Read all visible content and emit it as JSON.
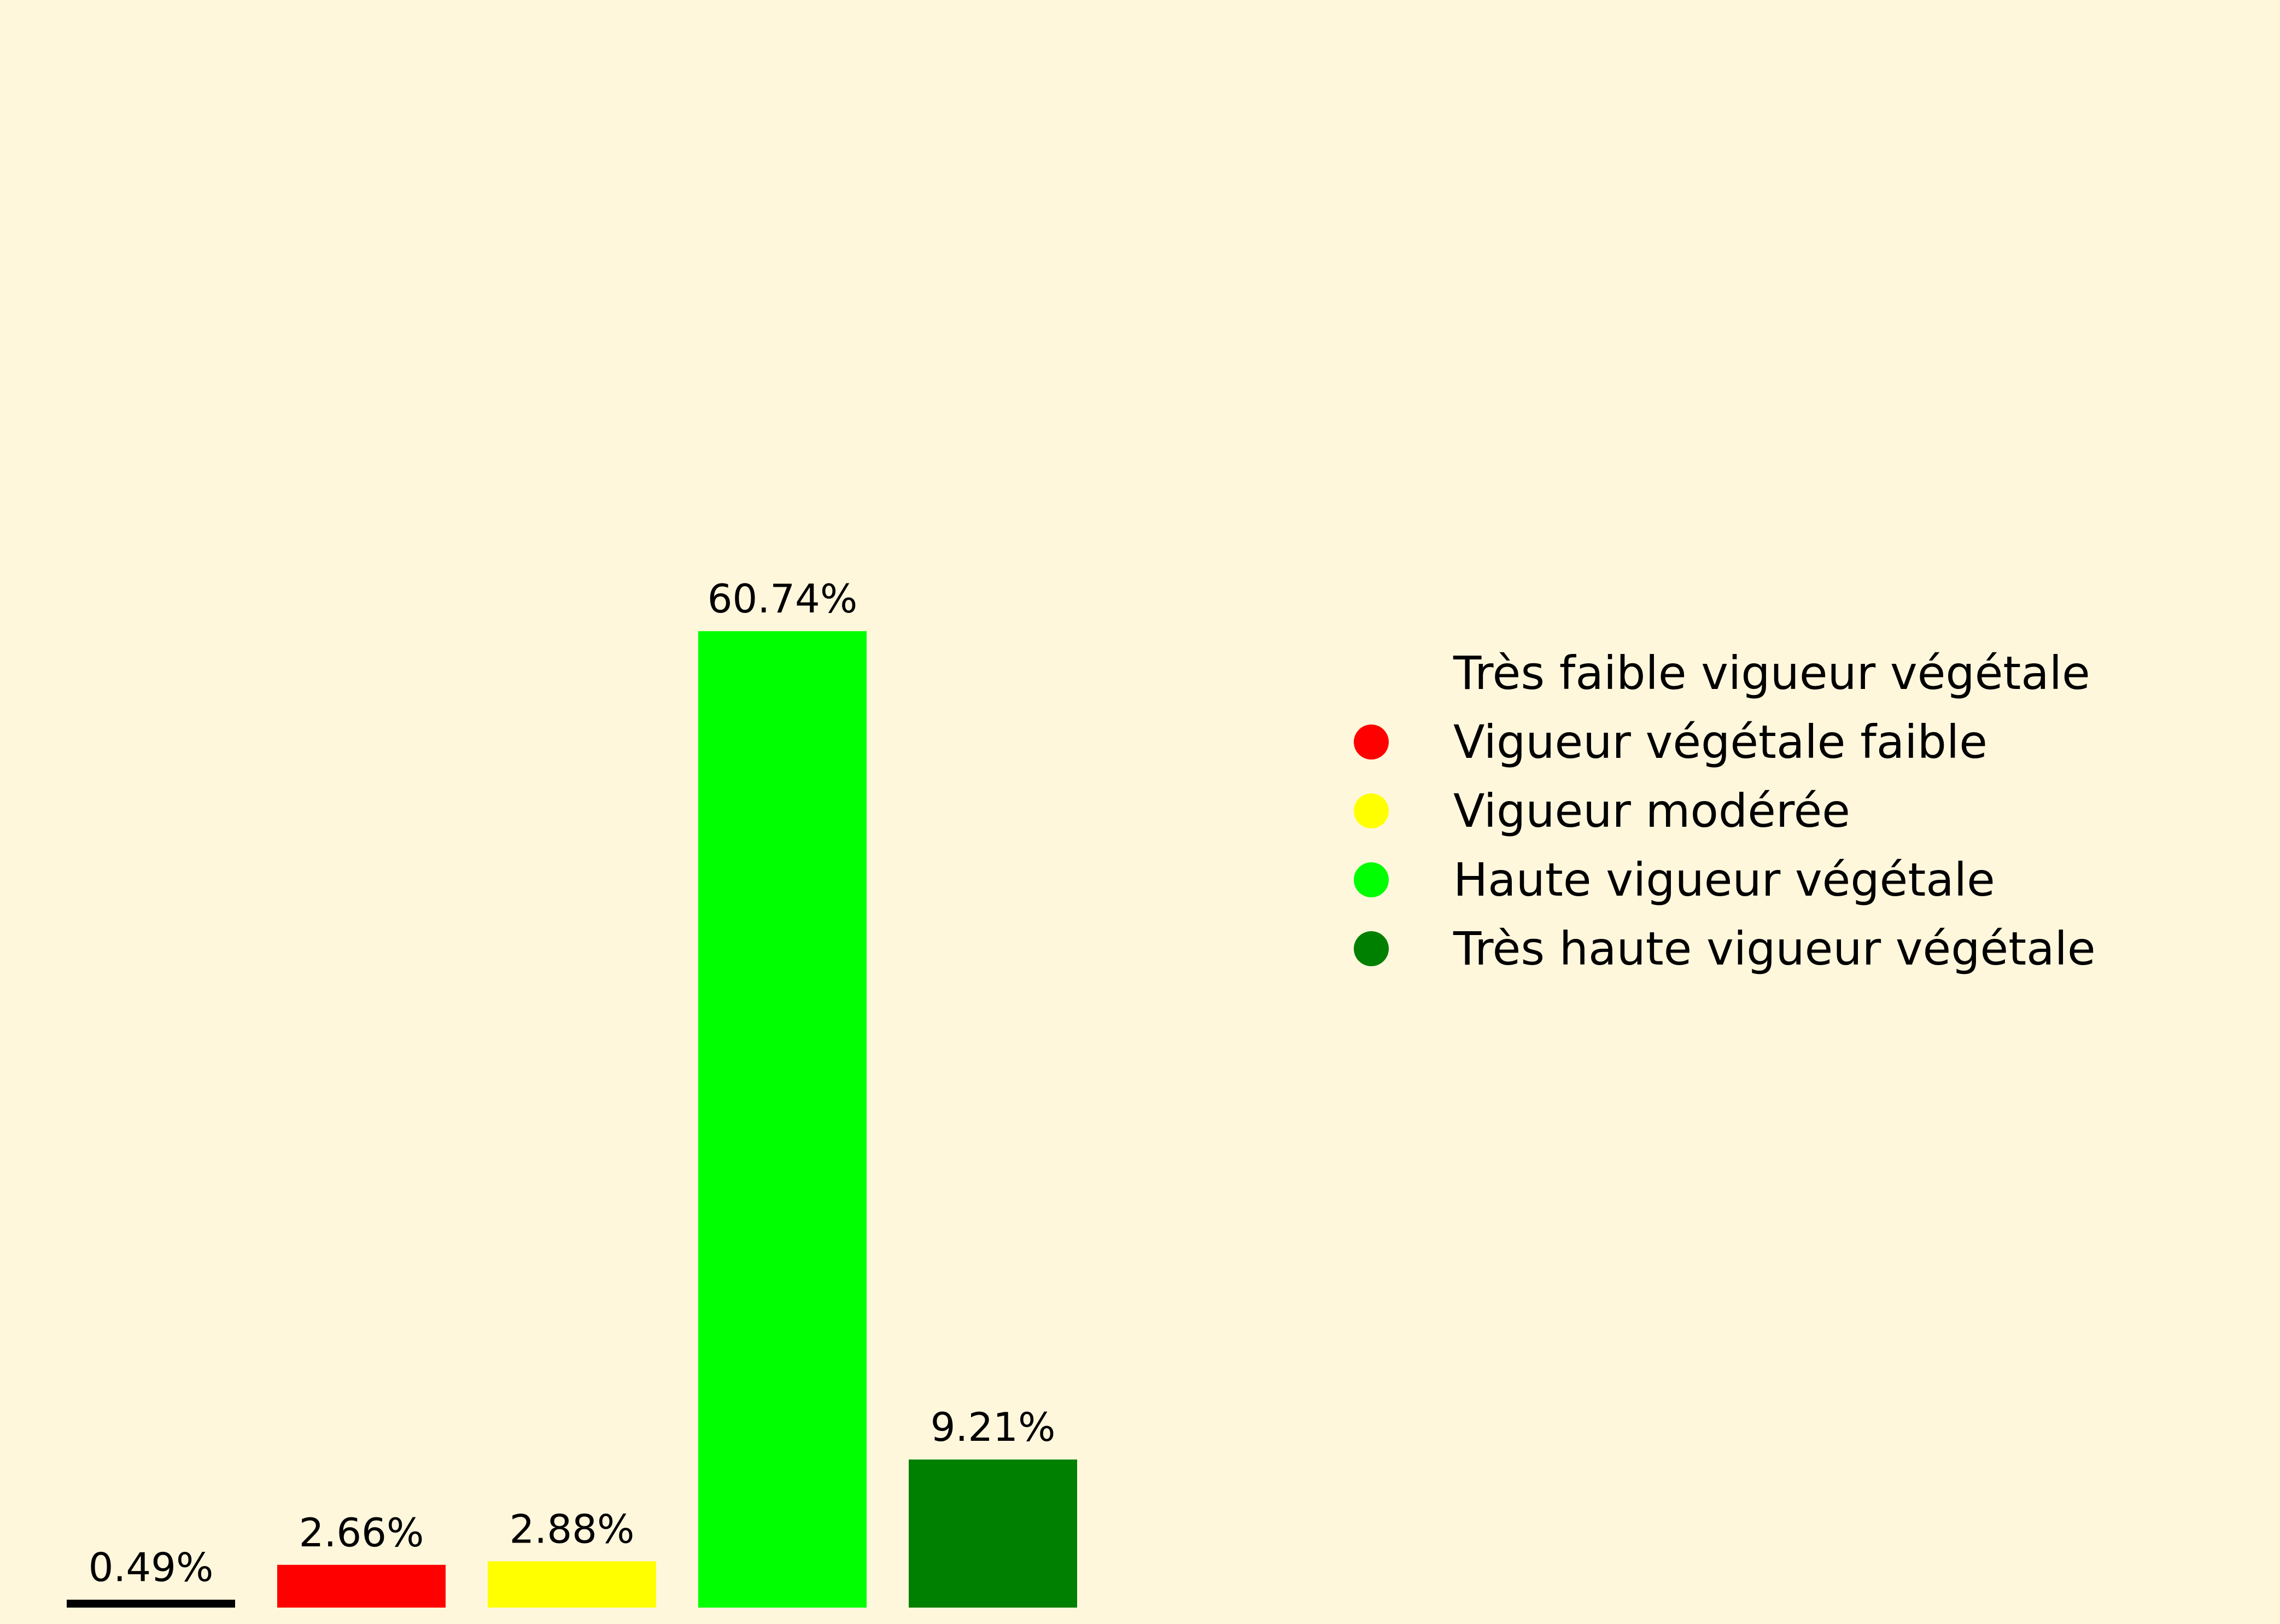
{
  "chart_data": {
    "type": "bar",
    "categories": [
      "Très faible vigueur végétale",
      "Vigueur végétale faible",
      "Vigueur modérée",
      "Haute vigueur végétale",
      "Très haute vigueur végétale"
    ],
    "values": [
      0.49,
      2.66,
      2.88,
      60.74,
      9.21
    ],
    "value_labels": [
      "0.49%",
      "2.66%",
      "2.88%",
      "60.74%",
      "9.21%"
    ],
    "colors": [
      "#000000",
      "#ff0000",
      "#ffff00",
      "#00ff00",
      "#008000"
    ],
    "legend_marker_colors": [
      "#fff7dc",
      "#ff0000",
      "#ffff00",
      "#00ff00",
      "#008000"
    ],
    "ylim": [
      0,
      100
    ],
    "grid": false,
    "legend_position": "right",
    "background": "#fff7dc",
    "title": "",
    "xlabel": "",
    "ylabel": ""
  }
}
